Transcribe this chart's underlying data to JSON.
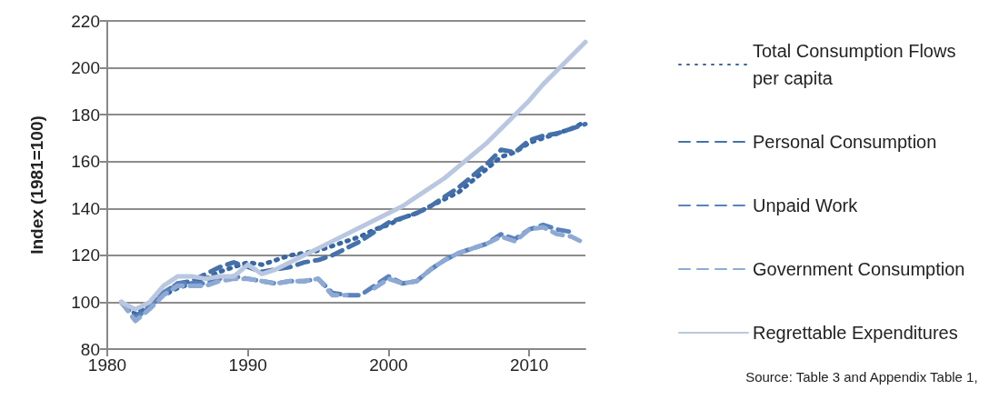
{
  "chart_data": {
    "type": "line",
    "ylabel": "Index (1981=100)",
    "x": [
      1981,
      1982,
      1983,
      1984,
      1985,
      1986,
      1987,
      1988,
      1989,
      1990,
      1991,
      1992,
      1993,
      1994,
      1995,
      1996,
      1997,
      1998,
      1999,
      2000,
      2001,
      2002,
      2003,
      2004,
      2005,
      2006,
      2007,
      2008,
      2009,
      2010,
      2011,
      2012,
      2013,
      2014
    ],
    "series": [
      {
        "name": "Total Consumption Flows per capita",
        "color": "#3a66a3",
        "line_style": "dotted",
        "values": [
          100,
          95,
          99,
          103,
          106,
          108,
          110,
          113,
          115,
          117,
          116,
          118,
          120,
          121,
          122,
          124,
          126,
          128,
          131,
          133,
          136,
          138,
          141,
          144,
          147,
          152,
          157,
          162,
          164,
          168,
          170,
          172,
          174,
          177
        ]
      },
      {
        "name": "Personal Consumption",
        "color": "#4571ab",
        "line_style": "dashed",
        "values": [
          100,
          94,
          98,
          104,
          108,
          109,
          112,
          115,
          117,
          115,
          113,
          114,
          115,
          117,
          118,
          120,
          123,
          126,
          130,
          134,
          136,
          138,
          141,
          145,
          149,
          154,
          159,
          165,
          164,
          169,
          171,
          172,
          174,
          176
        ]
      },
      {
        "name": "Unpaid Work",
        "color": "#5a82bb",
        "line_style": "dashed",
        "values": [
          100,
          93,
          98,
          104,
          108,
          108,
          108,
          110,
          111,
          110,
          109,
          108,
          109,
          109,
          110,
          104,
          103,
          103,
          107,
          111,
          108,
          109,
          114,
          118,
          121,
          123,
          125,
          129,
          127,
          131,
          133,
          131,
          130,
          null
        ]
      },
      {
        "name": "Government Consumption",
        "color": "#8eaad4",
        "line_style": "dashed",
        "values": [
          100,
          92,
          97,
          103,
          107,
          107,
          107,
          109,
          110,
          110,
          109,
          108,
          109,
          109,
          110,
          103,
          103,
          null,
          106,
          110,
          108,
          109,
          114,
          118,
          121,
          123,
          125,
          128,
          126,
          131,
          132,
          129,
          128,
          125
        ]
      },
      {
        "name": "Regrettable Expenditures",
        "color": "#b9c7e0",
        "line_style": "solid",
        "values": [
          100,
          97,
          100,
          107,
          111,
          111,
          110,
          111,
          111,
          116,
          112,
          114,
          117,
          120,
          123,
          126,
          129,
          132,
          135,
          138,
          141,
          145,
          149,
          153,
          158,
          163,
          168,
          174,
          180,
          186,
          193,
          199,
          205,
          211
        ]
      }
    ],
    "xlim": [
      1980,
      2014
    ],
    "xticks": [
      1980,
      1990,
      2000,
      2010
    ],
    "ylim": [
      80,
      220
    ],
    "yticks": [
      80,
      100,
      120,
      140,
      160,
      180,
      200,
      220
    ],
    "grid": "y",
    "legend": "right",
    "marker": "none",
    "annotations": [
      "Source: Table 3 and Appendix Table 1,"
    ]
  }
}
